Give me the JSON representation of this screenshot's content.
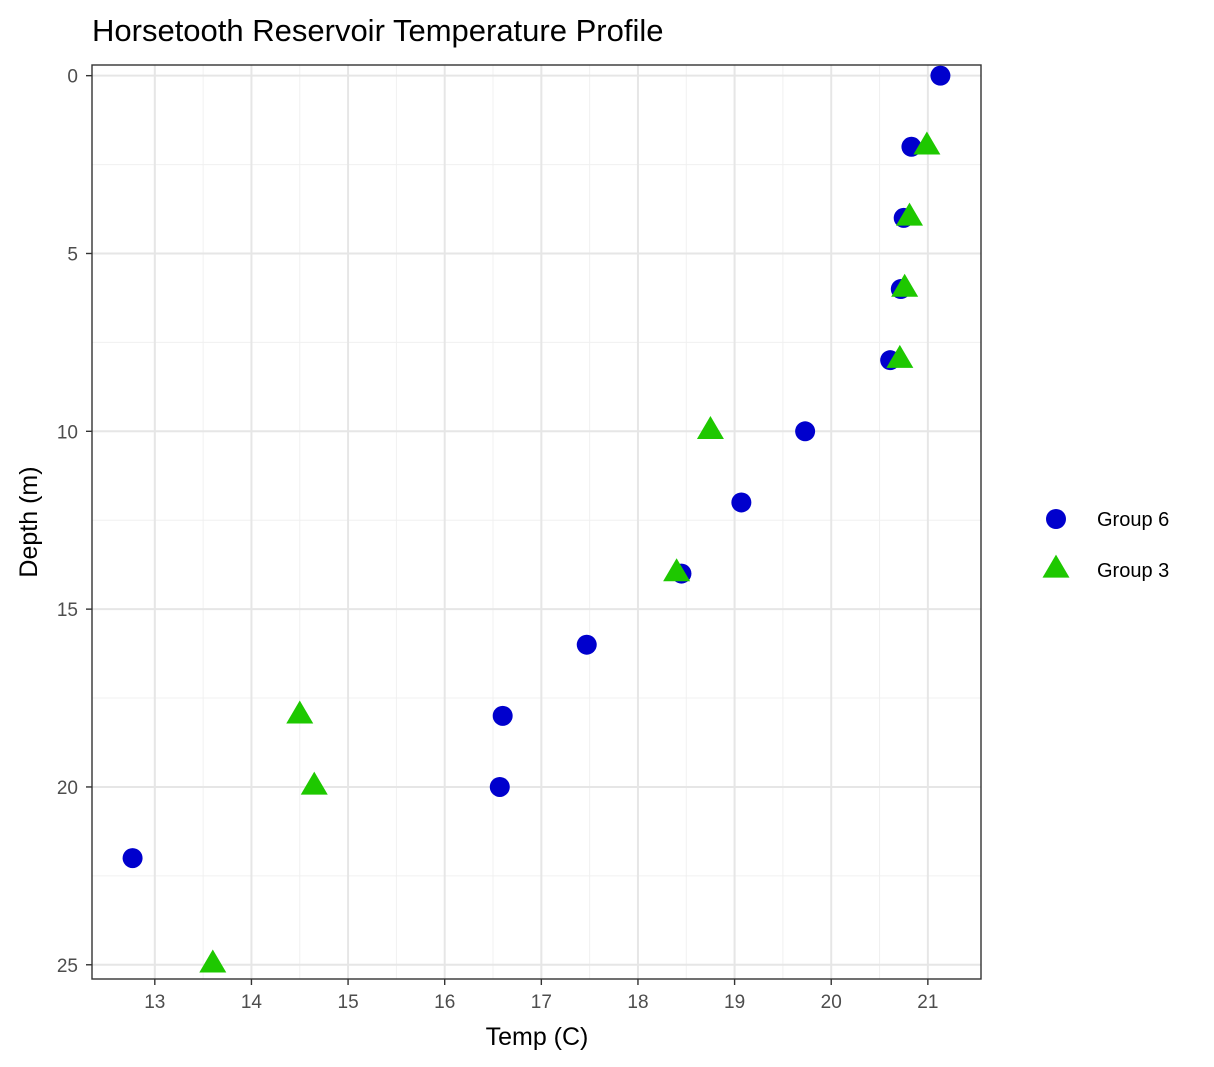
{
  "chart_data": {
    "type": "scatter",
    "title": "Horsetooth Reservoir Temperature Profile",
    "xlabel": "Temp (C)",
    "ylabel": "Depth (m)",
    "xlim": [
      12.35,
      21.55
    ],
    "ylim": [
      -0.3,
      25.4
    ],
    "y_reversed": true,
    "grid": true,
    "x_ticks": [
      13,
      14,
      15,
      16,
      17,
      18,
      19,
      20,
      21
    ],
    "y_ticks": [
      0,
      5,
      10,
      15,
      20,
      25
    ],
    "legend_position": "right",
    "series": [
      {
        "name": "Group 6",
        "marker": "circle",
        "color": "#0000cd",
        "points": [
          {
            "x": 21.13,
            "y": 0
          },
          {
            "x": 20.83,
            "y": 2
          },
          {
            "x": 20.75,
            "y": 4
          },
          {
            "x": 20.72,
            "y": 6
          },
          {
            "x": 20.61,
            "y": 8
          },
          {
            "x": 19.73,
            "y": 10
          },
          {
            "x": 19.07,
            "y": 12
          },
          {
            "x": 18.45,
            "y": 14
          },
          {
            "x": 17.47,
            "y": 16
          },
          {
            "x": 16.6,
            "y": 18
          },
          {
            "x": 16.57,
            "y": 20
          },
          {
            "x": 12.77,
            "y": 22
          }
        ]
      },
      {
        "name": "Group 3",
        "marker": "triangle",
        "color": "#1ec800",
        "points": [
          {
            "x": 20.99,
            "y": 2
          },
          {
            "x": 20.81,
            "y": 4
          },
          {
            "x": 20.76,
            "y": 6
          },
          {
            "x": 20.71,
            "y": 8
          },
          {
            "x": 18.75,
            "y": 10
          },
          {
            "x": 18.4,
            "y": 14
          },
          {
            "x": 14.5,
            "y": 18
          },
          {
            "x": 14.65,
            "y": 20
          },
          {
            "x": 13.6,
            "y": 25
          }
        ]
      }
    ]
  }
}
